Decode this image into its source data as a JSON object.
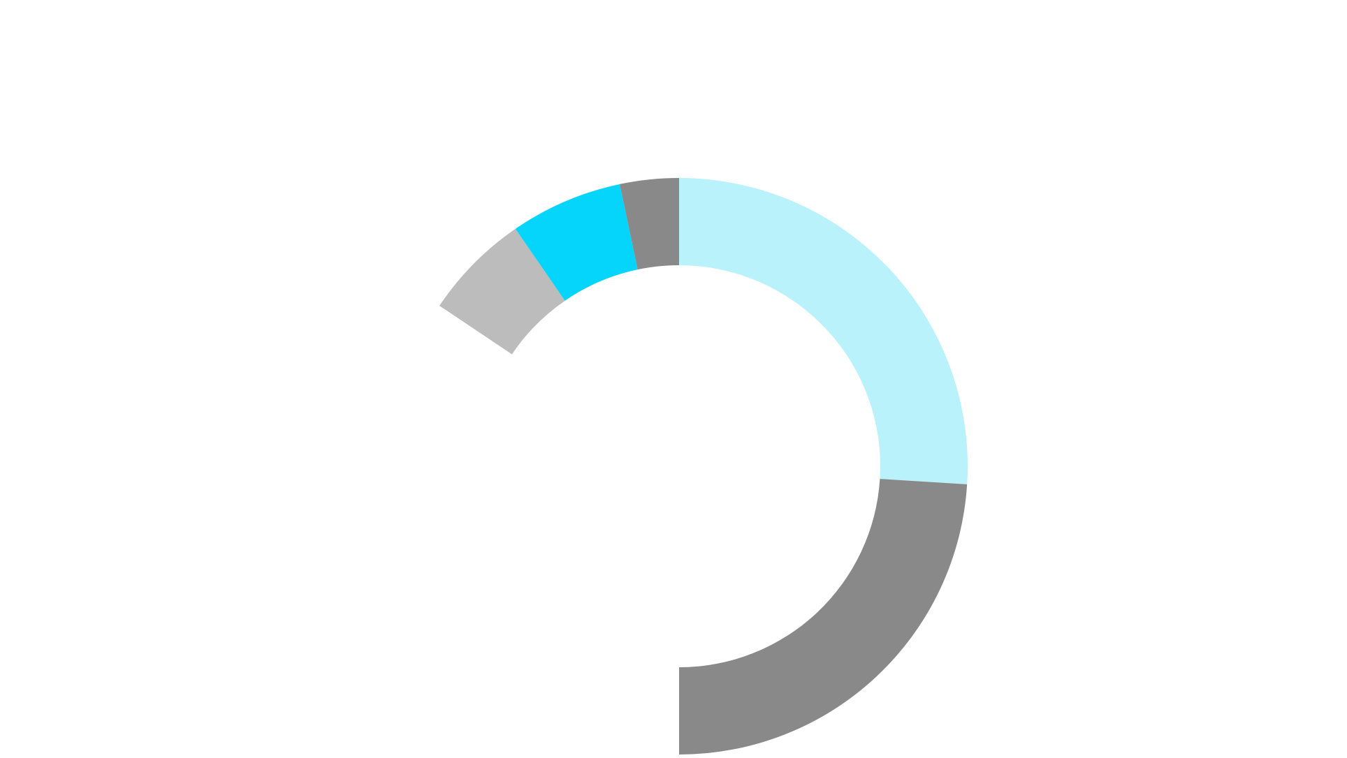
{
  "chart_data": {
    "type": "pie",
    "variant": "donut",
    "title": "",
    "legend": "none",
    "start_angle_deg": 0,
    "direction": "clockwise",
    "total": 100,
    "slices": [
      {
        "value": 26.0,
        "color": "#b9f2fb"
      },
      {
        "value": 24.0,
        "color": "#898989"
      },
      {
        "value": 10.0,
        "color": "#ffffff"
      },
      {
        "value": 11.0,
        "color": "#ffffff"
      },
      {
        "value": 7.0,
        "color": "#ffffff"
      },
      {
        "value": 6.4,
        "color": "#ffffff"
      },
      {
        "value": 6.0,
        "color": "#bcbcbc"
      },
      {
        "value": 6.3,
        "color": "#05d5fb"
      },
      {
        "value": 3.3,
        "color": "#898989"
      }
    ]
  }
}
